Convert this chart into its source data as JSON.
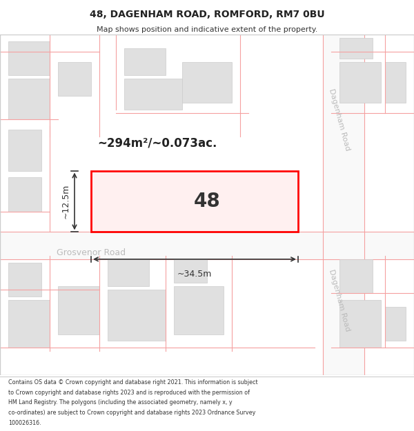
{
  "title": "48, DAGENHAM ROAD, ROMFORD, RM7 0BU",
  "subtitle": "Map shows position and indicative extent of the property.",
  "footer_lines": [
    "Contains OS data © Crown copyright and database right 2021. This information is subject",
    "to Crown copyright and database rights 2023 and is reproduced with the permission of",
    "HM Land Registry. The polygons (including the associated geometry, namely x, y",
    "co-ordinates) are subject to Crown copyright and database rights 2023 Ordnance Survey",
    "100026316."
  ],
  "area_label": "~294m²/~0.073ac.",
  "number_label": "48",
  "dim_width": "~34.5m",
  "dim_height": "~12.5m",
  "road_label_top": "Dagenham Road",
  "road_label_bottom": "Dagenham Road",
  "road_label_left": "Grosvenor Road",
  "bg_color": "#ffffff",
  "map_bg": "#f5f5f5",
  "building_fill": "#e0e0e0",
  "building_edge": "#cccccc",
  "road_line_color": "#f5a0a0",
  "highlight_color": "#ff0000",
  "highlight_fill": "#fff0f0",
  "road_label_color": "#c0c0c0"
}
